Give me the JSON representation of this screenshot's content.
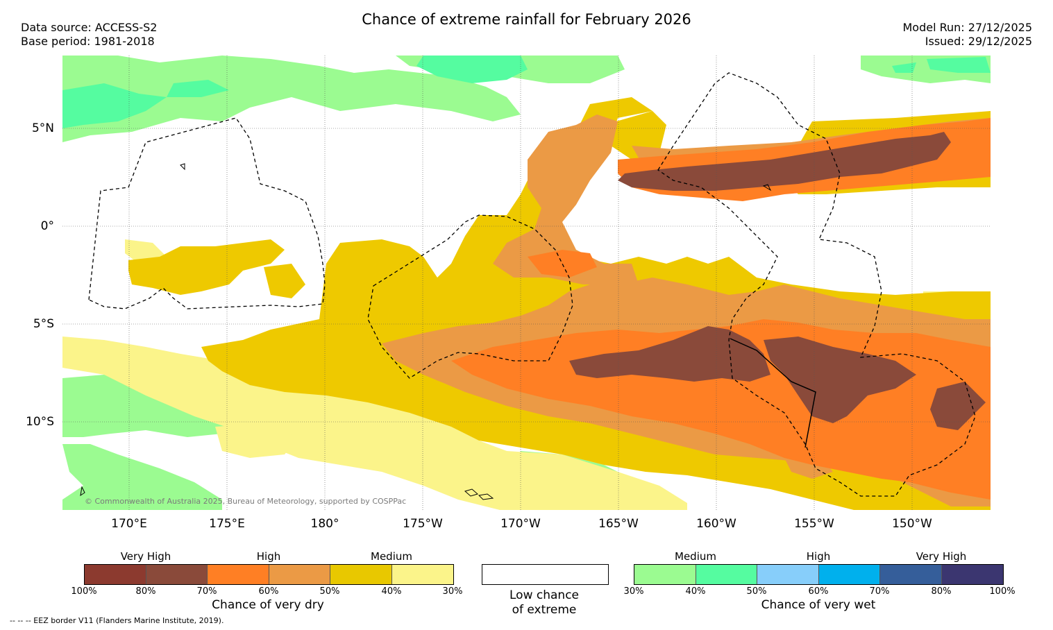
{
  "title": "Chance of extreme rainfall for February 2026",
  "meta": {
    "data_source": "Data source: ACCESS-S2",
    "base_period": "Base period: 1981-2018",
    "model_run": "Model Run: 27/12/2025",
    "issued": "Issued: 29/12/2025"
  },
  "map": {
    "lat_labels": [
      "5°N",
      "0°",
      "5°S",
      "10°S"
    ],
    "lon_labels": [
      "170°E",
      "175°E",
      "180°",
      "175°W",
      "170°W",
      "165°W",
      "160°W",
      "155°W",
      "150°W"
    ],
    "copyright": "© Commonwealth of Australia 2025, Bureau of Meteorology, supported by COSPPac"
  },
  "legend": {
    "dry": {
      "categories": [
        "Very High",
        "High",
        "Medium"
      ],
      "colors": [
        "#8c3a2f",
        "#8a4a3a",
        "#ff7f24",
        "#eb9a45",
        "#e8c800",
        "#fbf48a"
      ],
      "ticks": [
        "100%",
        "80%",
        "70%",
        "60%",
        "50%",
        "40%",
        "30%"
      ],
      "caption": "Chance of very dry"
    },
    "low": {
      "caption_line1": "Low chance",
      "caption_line2": "of extreme"
    },
    "wet": {
      "categories": [
        "Medium",
        "High",
        "Very High"
      ],
      "colors": [
        "#9bfb91",
        "#55fca0",
        "#87cefa",
        "#00b0ed",
        "#355e9a",
        "#3b3670"
      ],
      "ticks": [
        "30%",
        "40%",
        "50%",
        "60%",
        "70%",
        "80%",
        "100%"
      ],
      "caption": "Chance of very wet"
    }
  },
  "footnote": "--  --  -- EEZ border V11 (Flanders Marine Institute, 2019).",
  "colors": {
    "very_dry_dark": "#8a4a3a",
    "dry_orange": "#ff7f24",
    "dry_light_orange": "#eb9a45",
    "dry_yellow": "#eec900",
    "dry_pale": "#fbf48a",
    "wet_light_green": "#9bfb91",
    "wet_green": "#55fca0"
  }
}
